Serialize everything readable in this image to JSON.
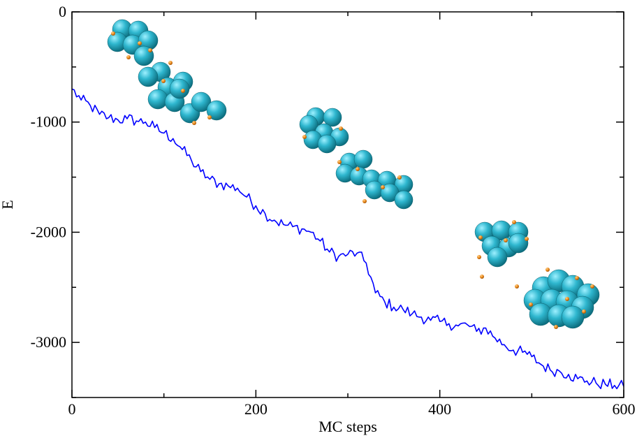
{
  "chart_data": {
    "type": "line",
    "title": "",
    "xlabel": "MC steps",
    "ylabel": "E",
    "xlim": [
      0,
      600
    ],
    "ylim": [
      -3500,
      0
    ],
    "x_ticks": [
      0,
      200,
      400,
      600
    ],
    "y_ticks": [
      0,
      -1000,
      -2000,
      -3000
    ],
    "x_tick_labels": [
      "0",
      "200",
      "400",
      "600"
    ],
    "y_tick_labels": [
      "0",
      "-1000",
      "-2000",
      "-3000"
    ],
    "grid": false,
    "legend": "none",
    "series": [
      {
        "color": "#0000ff",
        "x": [
          0,
          10,
          20,
          30,
          40,
          50,
          60,
          70,
          80,
          90,
          100,
          110,
          120,
          130,
          140,
          150,
          160,
          170,
          180,
          190,
          200,
          210,
          220,
          230,
          240,
          250,
          260,
          270,
          280,
          290,
          300,
          310,
          320,
          330,
          340,
          350,
          360,
          370,
          380,
          390,
          400,
          410,
          420,
          430,
          440,
          450,
          460,
          470,
          480,
          490,
          500,
          510,
          520,
          530,
          540,
          550,
          560,
          570,
          580,
          590,
          600
        ],
        "y": [
          -700,
          -800,
          -850,
          -930,
          -960,
          -980,
          -970,
          -990,
          -1000,
          -1050,
          -1100,
          -1150,
          -1250,
          -1350,
          -1450,
          -1520,
          -1560,
          -1580,
          -1600,
          -1680,
          -1760,
          -1830,
          -1890,
          -1930,
          -1950,
          -1970,
          -2000,
          -2080,
          -2180,
          -2220,
          -2200,
          -2190,
          -2280,
          -2550,
          -2630,
          -2680,
          -2700,
          -2740,
          -2770,
          -2800,
          -2810,
          -2830,
          -2850,
          -2840,
          -2900,
          -2870,
          -2960,
          -3020,
          -3070,
          -3090,
          -3130,
          -3200,
          -3250,
          -3260,
          -3290,
          -3330,
          -3350,
          -3370,
          -3380,
          -3390,
          -3400
        ]
      }
    ],
    "annotations": [
      "cluster-image-1",
      "cluster-image-2",
      "cluster-image-3",
      "cluster-image-4",
      "cluster-image-5"
    ],
    "colors": {
      "line": "#0000ff",
      "sphere": "#28b4cc",
      "dot": "#ee8a1a"
    }
  }
}
